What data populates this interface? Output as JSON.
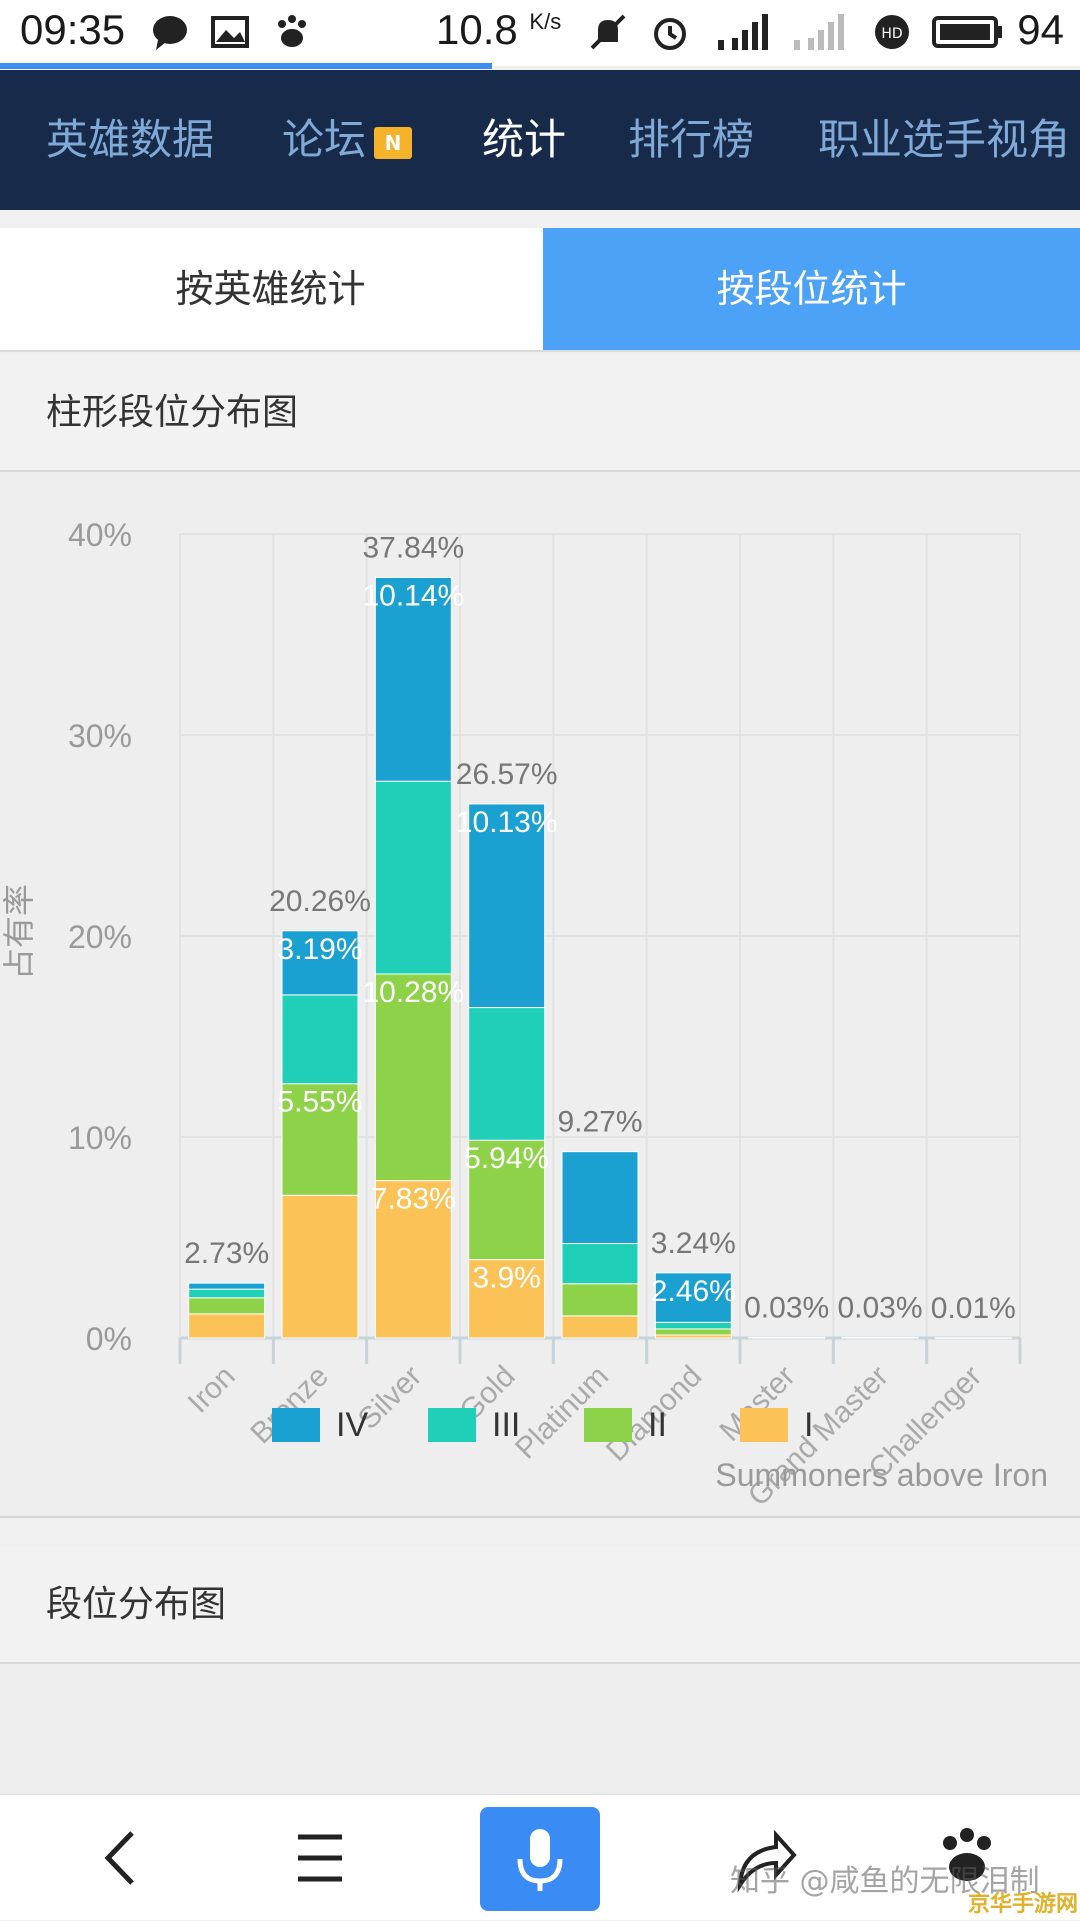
{
  "status_bar": {
    "time": "09:35",
    "speed": "10.8",
    "speed_unit": "K/s",
    "battery": "94"
  },
  "top_nav": {
    "tabs": [
      {
        "label": "英雄数据",
        "active": false
      },
      {
        "label": "论坛",
        "active": false,
        "badge": "N"
      },
      {
        "label": "统计",
        "active": true
      },
      {
        "label": "排行榜",
        "active": false
      },
      {
        "label": "职业选手视角",
        "active": false
      }
    ]
  },
  "seg_tabs": {
    "left": "按英雄统计",
    "right": "按段位统计"
  },
  "sections": {
    "bar_title": "柱形段位分布图",
    "dist_title": "段位分布图"
  },
  "watermark": "知乎 @咸鱼的无限泪制",
  "corner_logo": "京华手游网",
  "colors": {
    "nav_bg": "#182a49",
    "active_tab": "#4ca2f7",
    "series_IV": "#1aa0d1",
    "series_III": "#1fcfb8",
    "series_II": "#8dd248",
    "series_I": "#fbc257"
  },
  "chart_data": {
    "type": "bar",
    "stacked": true,
    "ylabel": "占有率",
    "ylim": [
      0,
      40
    ],
    "yticks": [
      "0%",
      "10%",
      "20%",
      "30%",
      "40%"
    ],
    "categories": [
      "Iron",
      "Bronze",
      "Silver",
      "Gold",
      "Platinum",
      "Diamond",
      "Master",
      "Grand Master",
      "Challenger"
    ],
    "totals": [
      "2.73%",
      "20.26%",
      "37.84%",
      "26.57%",
      "9.27%",
      "3.24%",
      "0.03%",
      "0.03%",
      "0.01%"
    ],
    "total_values": [
      2.73,
      20.26,
      37.84,
      26.57,
      9.27,
      3.24,
      0.03,
      0.03,
      0.01
    ],
    "series": [
      {
        "name": "I",
        "color": "#fbc257",
        "values": [
          1.2,
          7.1,
          7.83,
          3.9,
          1.1,
          0.15,
          0,
          0,
          0
        ],
        "labels": [
          "",
          "",
          "7.83%",
          "3.9%",
          "",
          "",
          "",
          "",
          ""
        ]
      },
      {
        "name": "II",
        "color": "#8dd248",
        "values": [
          0.8,
          5.55,
          10.28,
          5.94,
          1.6,
          0.3,
          0,
          0,
          0
        ],
        "labels": [
          "",
          "5.55%",
          "10.28%",
          "5.94%",
          "",
          "",
          "",
          "",
          ""
        ]
      },
      {
        "name": "III",
        "color": "#1fcfb8",
        "values": [
          0.43,
          4.42,
          9.59,
          6.6,
          2.0,
          0.33,
          0,
          0,
          0
        ],
        "labels": [
          "",
          "",
          "",
          "",
          "",
          "",
          "",
          "",
          ""
        ]
      },
      {
        "name": "IV",
        "color": "#1aa0d1",
        "values": [
          0.3,
          3.19,
          10.14,
          10.13,
          4.57,
          2.46,
          0.03,
          0.03,
          0.01
        ],
        "labels": [
          "",
          "3.19%",
          "10.14%",
          "10.13%",
          "",
          "2.46%",
          "",
          "",
          ""
        ]
      }
    ],
    "legend": [
      {
        "name": "IV",
        "color": "#1aa0d1"
      },
      {
        "name": "III",
        "color": "#1fcfb8"
      },
      {
        "name": "II",
        "color": "#8dd248"
      },
      {
        "name": "I",
        "color": "#fbc257"
      }
    ],
    "legend_placement": "bottom",
    "annotation": "Summoners above Iron",
    "grid": true
  }
}
